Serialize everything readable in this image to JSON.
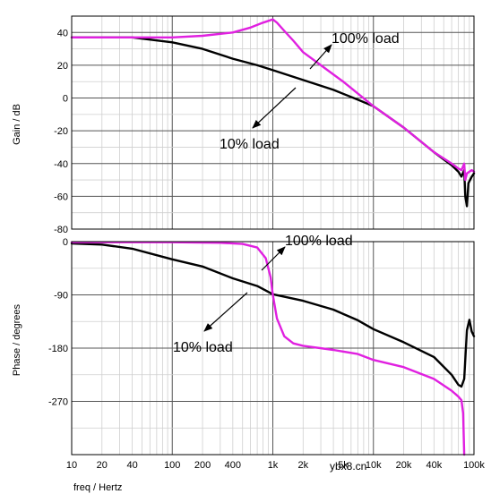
{
  "chart_data": [
    {
      "type": "line",
      "panel": "gain",
      "ylabel": "Gain / dB",
      "xscale": "log",
      "xlim": [
        10,
        100000
      ],
      "ylim": [
        -80,
        50
      ],
      "yticks": [
        -80,
        -60,
        -40,
        -20,
        0,
        20,
        40
      ],
      "ytick_labels": [
        "-80",
        "-60",
        "-40",
        "-20",
        "0",
        "20",
        "40"
      ],
      "grid": true,
      "series": [
        {
          "name": "10% load",
          "color": "#000000",
          "points": [
            [
              10,
              37
            ],
            [
              40,
              37
            ],
            [
              100,
              34
            ],
            [
              200,
              30
            ],
            [
              400,
              24
            ],
            [
              700,
              20
            ],
            [
              1000,
              17
            ],
            [
              2000,
              11
            ],
            [
              4000,
              5
            ],
            [
              7000,
              -1
            ],
            [
              10000,
              -5
            ],
            [
              20000,
              -18
            ],
            [
              40000,
              -33
            ],
            [
              60000,
              -41
            ],
            [
              70000,
              -45
            ],
            [
              75000,
              -48
            ],
            [
              80000,
              -44
            ],
            [
              82000,
              -60
            ],
            [
              85000,
              -66
            ],
            [
              88000,
              -52
            ],
            [
              95000,
              -48
            ],
            [
              100000,
              -46
            ]
          ]
        },
        {
          "name": "100% load",
          "color": "#e020e0",
          "points": [
            [
              10,
              37
            ],
            [
              100,
              37
            ],
            [
              200,
              38
            ],
            [
              400,
              40
            ],
            [
              600,
              43
            ],
            [
              800,
              46
            ],
            [
              1000,
              48
            ],
            [
              1100,
              46
            ],
            [
              1300,
              41
            ],
            [
              1600,
              35
            ],
            [
              2000,
              28
            ],
            [
              3000,
              20
            ],
            [
              5000,
              10
            ],
            [
              10000,
              -5
            ],
            [
              20000,
              -18
            ],
            [
              40000,
              -33
            ],
            [
              60000,
              -40
            ],
            [
              70000,
              -43
            ],
            [
              75000,
              -44
            ],
            [
              80000,
              -40
            ],
            [
              82000,
              -50
            ],
            [
              85000,
              -46
            ],
            [
              95000,
              -44
            ],
            [
              100000,
              -45
            ]
          ]
        }
      ]
    },
    {
      "type": "line",
      "panel": "phase",
      "xlabel": "freq / Hertz",
      "ylabel": "Phase / degrees",
      "xscale": "log",
      "xlim": [
        10,
        100000
      ],
      "ylim": [
        -360,
        0
      ],
      "xticks": [
        10,
        20,
        40,
        100,
        200,
        400,
        1000,
        2000,
        5000,
        10000,
        20000,
        40000,
        100000
      ],
      "xtick_labels": [
        "10",
        "20",
        "40",
        "100",
        "200",
        "400",
        "1k",
        "2k",
        "5k",
        "10k",
        "20k",
        "40k",
        "100k"
      ],
      "yticks": [
        0,
        -90,
        -180,
        -270
      ],
      "ytick_labels": [
        "0",
        "-90",
        "-180",
        "-270"
      ],
      "grid": true,
      "series": [
        {
          "name": "10% load",
          "color": "#000000",
          "points": [
            [
              10,
              -3
            ],
            [
              20,
              -5
            ],
            [
              40,
              -12
            ],
            [
              100,
              -30
            ],
            [
              200,
              -42
            ],
            [
              400,
              -62
            ],
            [
              700,
              -75
            ],
            [
              1000,
              -89
            ],
            [
              2000,
              -100
            ],
            [
              4000,
              -115
            ],
            [
              7000,
              -133
            ],
            [
              10000,
              -148
            ],
            [
              20000,
              -170
            ],
            [
              40000,
              -195
            ],
            [
              60000,
              -225
            ],
            [
              70000,
              -242
            ],
            [
              75000,
              -245
            ],
            [
              80000,
              -232
            ],
            [
              85000,
              -150
            ],
            [
              90000,
              -132
            ],
            [
              95000,
              -152
            ],
            [
              100000,
              -160
            ]
          ]
        },
        {
          "name": "100% load",
          "color": "#e020e0",
          "points": [
            [
              10,
              -1
            ],
            [
              100,
              -1
            ],
            [
              300,
              -2
            ],
            [
              500,
              -4
            ],
            [
              700,
              -10
            ],
            [
              850,
              -28
            ],
            [
              950,
              -60
            ],
            [
              1000,
              -90
            ],
            [
              1100,
              -130
            ],
            [
              1300,
              -160
            ],
            [
              1600,
              -172
            ],
            [
              2000,
              -176
            ],
            [
              4000,
              -183
            ],
            [
              7000,
              -190
            ],
            [
              10000,
              -200
            ],
            [
              20000,
              -212
            ],
            [
              40000,
              -232
            ],
            [
              60000,
              -252
            ],
            [
              70000,
              -262
            ],
            [
              75000,
              -268
            ],
            [
              78000,
              -290
            ],
            [
              80000,
              -360
            ]
          ]
        }
      ]
    }
  ],
  "annotations": {
    "gain_100": "100% load",
    "gain_10": "10% load",
    "phase_100": "100% load",
    "phase_10": "10% load"
  },
  "watermark": "ybx8.cn"
}
